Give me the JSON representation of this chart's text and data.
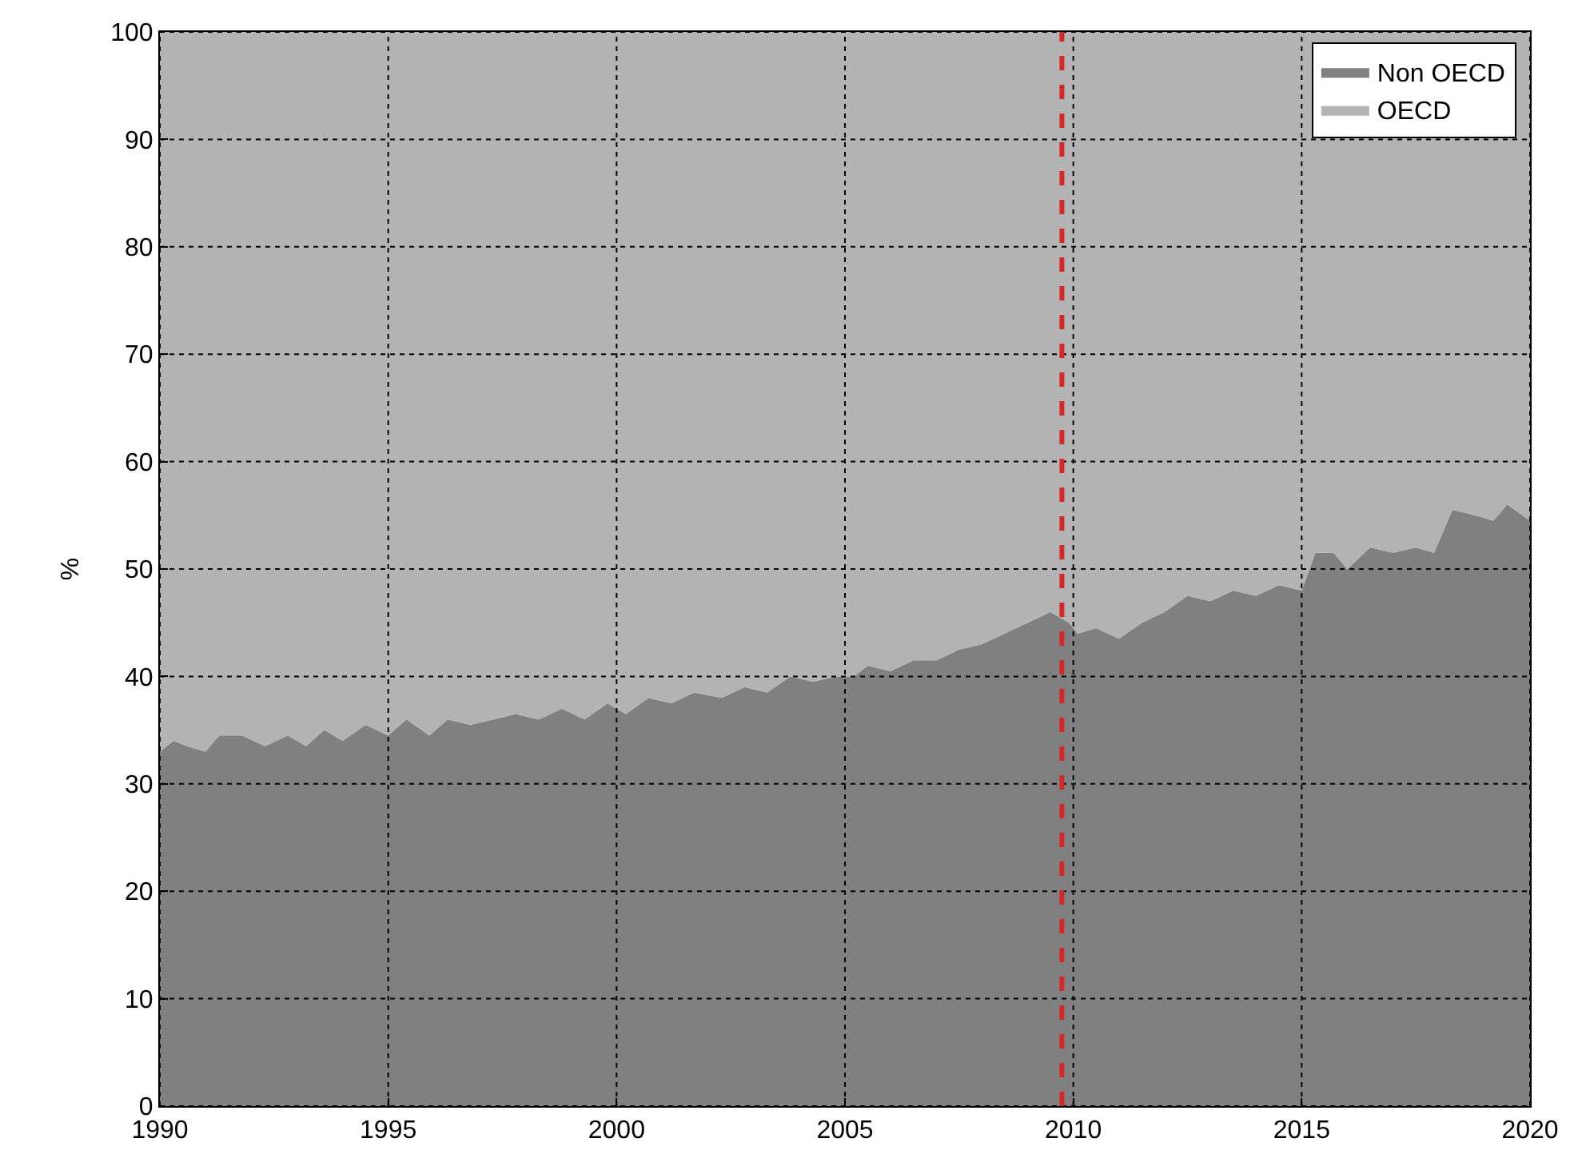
{
  "chart_data": {
    "type": "area",
    "stacked": true,
    "ylabel": "%",
    "x": [
      1990,
      1990.3,
      1990.6,
      1991,
      1991.3,
      1991.8,
      1992.3,
      1992.8,
      1993.2,
      1993.6,
      1994,
      1994.5,
      1995,
      1995.4,
      1995.9,
      1996.3,
      1996.8,
      1997.3,
      1997.8,
      1998.3,
      1998.8,
      1999.3,
      1999.8,
      2000.2,
      2000.7,
      2001.2,
      2001.7,
      2002.3,
      2002.8,
      2003.3,
      2003.8,
      2004.3,
      2004.8,
      2005.2,
      2005.5,
      2006,
      2006.5,
      2007,
      2007.5,
      2008,
      2008.5,
      2009,
      2009.5,
      2009.9,
      2010.1,
      2010.5,
      2011,
      2011.5,
      2012,
      2012.5,
      2013,
      2013.5,
      2014,
      2014.5,
      2015,
      2015.3,
      2015.7,
      2016,
      2016.5,
      2017,
      2017.5,
      2017.9,
      2018.3,
      2018.8,
      2019.2,
      2019.5,
      2020
    ],
    "series": [
      {
        "name": "Non OECD",
        "color": "#808080",
        "values": [
          33,
          34,
          33.5,
          33,
          34.5,
          34.5,
          33.5,
          34.5,
          33.5,
          35,
          34,
          35.5,
          34.5,
          36,
          34.5,
          36,
          35.5,
          36,
          36.5,
          36,
          37,
          36,
          37.5,
          36.5,
          38,
          37.5,
          38.5,
          38,
          39,
          38.5,
          40,
          39.5,
          40,
          40,
          41,
          40.5,
          41.5,
          41.5,
          42.5,
          43,
          44,
          45,
          46,
          45,
          44,
          44.5,
          43.5,
          45,
          46,
          47.5,
          47,
          48,
          47.5,
          48.5,
          48,
          51.5,
          51.5,
          50,
          52,
          51.5,
          52,
          51.5,
          55.5,
          55,
          54.5,
          56,
          54.5
        ]
      },
      {
        "name": "OECD",
        "color": "#b3b3b3",
        "values": [
          67,
          66,
          66.5,
          67,
          65.5,
          65.5,
          66.5,
          65.5,
          66.5,
          65,
          66,
          64.5,
          65.5,
          64,
          65.5,
          64,
          64.5,
          64,
          63.5,
          64,
          63,
          64,
          62.5,
          63.5,
          62,
          62.5,
          61.5,
          62,
          61,
          61.5,
          60,
          60.5,
          60,
          60,
          59,
          59.5,
          58.5,
          58.5,
          57.5,
          57,
          56,
          55,
          54,
          55,
          56,
          55.5,
          56.5,
          55,
          54,
          52.5,
          53,
          52,
          52.5,
          51.5,
          52,
          48.5,
          48.5,
          50,
          48,
          48.5,
          48,
          48.5,
          44.5,
          45,
          45.5,
          44,
          45.5
        ]
      }
    ],
    "xlim": [
      1990,
      2020
    ],
    "xticks": [
      1990,
      1995,
      2000,
      2005,
      2010,
      2015,
      2020
    ],
    "ylim": [
      0,
      100
    ],
    "yticks": [
      0,
      10,
      20,
      30,
      40,
      50,
      60,
      70,
      80,
      90,
      100
    ],
    "ref_lines": [
      {
        "axis": "x",
        "value": 2009.75,
        "color": "#d62728",
        "line_style": "dashed"
      }
    ],
    "grid": true,
    "legend": "top right"
  }
}
